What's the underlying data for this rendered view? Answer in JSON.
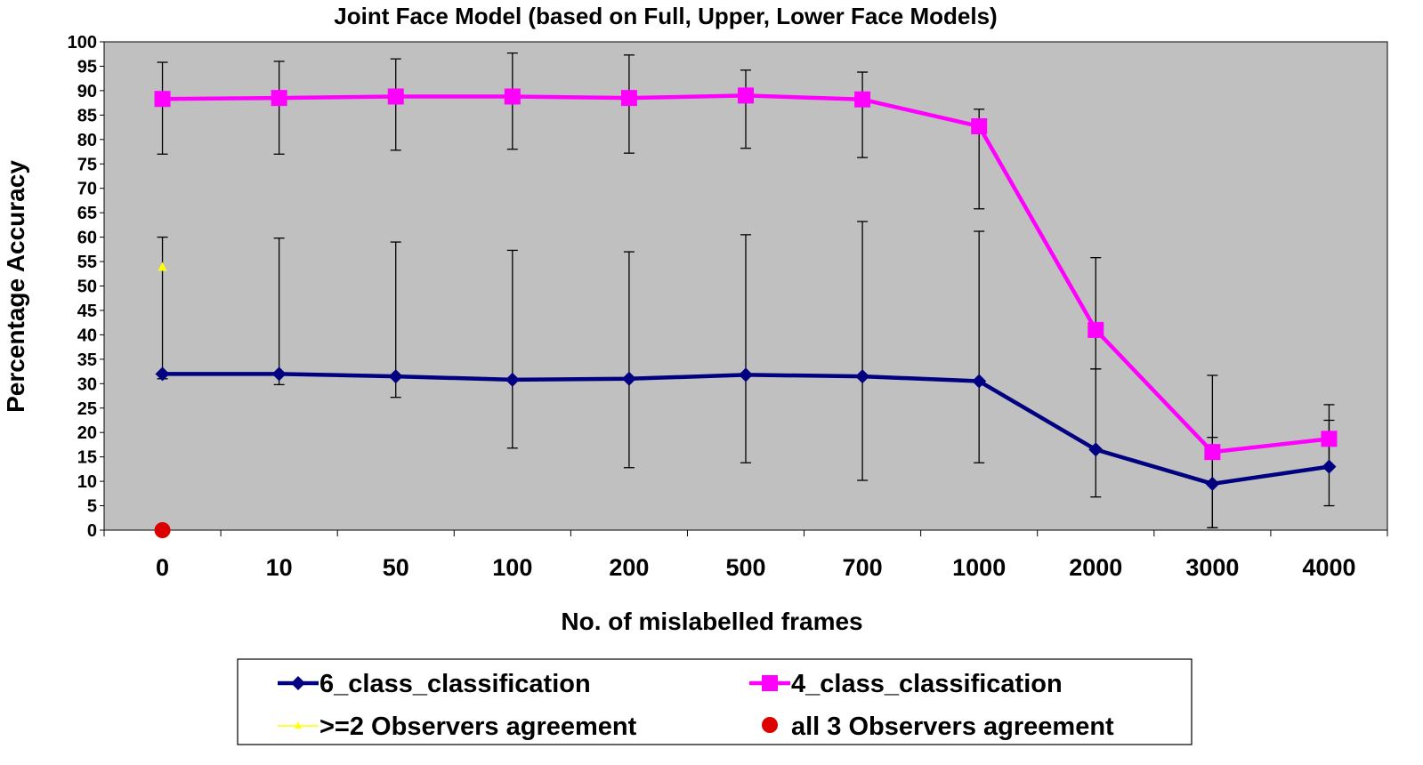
{
  "chart_data": {
    "type": "line",
    "title": "Joint Face Model (based on Full, Upper, Lower Face Models)",
    "xlabel": "No. of mislabelled frames",
    "ylabel": "Percentage Accuracy",
    "categories": [
      "0",
      "10",
      "50",
      "100",
      "200",
      "500",
      "700",
      "1000",
      "2000",
      "3000",
      "4000"
    ],
    "ylim": [
      0,
      100
    ],
    "yticks": [
      0,
      5,
      10,
      15,
      20,
      25,
      30,
      35,
      40,
      45,
      50,
      55,
      60,
      65,
      70,
      75,
      80,
      85,
      90,
      95,
      100
    ],
    "grid": false,
    "background": "#c0c0c0",
    "legend_position": "bottom",
    "series": [
      {
        "name": "6_class_classification",
        "color": "#000080",
        "marker": "diamond",
        "values": [
          32,
          32,
          31.5,
          30.8,
          31,
          31.8,
          31.5,
          30.5,
          16.5,
          9.5,
          13
        ],
        "err_low": [
          31,
          29.8,
          27.2,
          16.8,
          12.8,
          13.8,
          10.2,
          13.8,
          6.8,
          0.5,
          5
        ],
        "err_high": [
          60,
          59.8,
          59,
          57.3,
          57,
          60.5,
          63.2,
          61.2,
          33,
          19,
          22.5
        ]
      },
      {
        "name": "4_class_classification",
        "color": "#ff00ff",
        "marker": "square",
        "values": [
          88.3,
          88.5,
          88.8,
          88.8,
          88.5,
          89,
          88.2,
          82.7,
          41,
          16,
          18.7
        ],
        "err_low": [
          77,
          77,
          77.8,
          78,
          77.2,
          78.2,
          76.3,
          65.8,
          33,
          0.5,
          12.8
        ],
        "err_high": [
          95.8,
          96,
          96.5,
          97.7,
          97.3,
          94.2,
          93.8,
          86.2,
          55.8,
          31.7,
          25.7
        ]
      },
      {
        "name": ">=2 Observers agreement",
        "color": "#ffff00",
        "marker": "triangle",
        "points": [
          {
            "x": "0",
            "y": 54
          }
        ]
      },
      {
        "name": "all 3 Observers agreement",
        "color": "#dd0000",
        "marker": "circle",
        "points": [
          {
            "x": "0",
            "y": 0
          }
        ]
      }
    ]
  }
}
